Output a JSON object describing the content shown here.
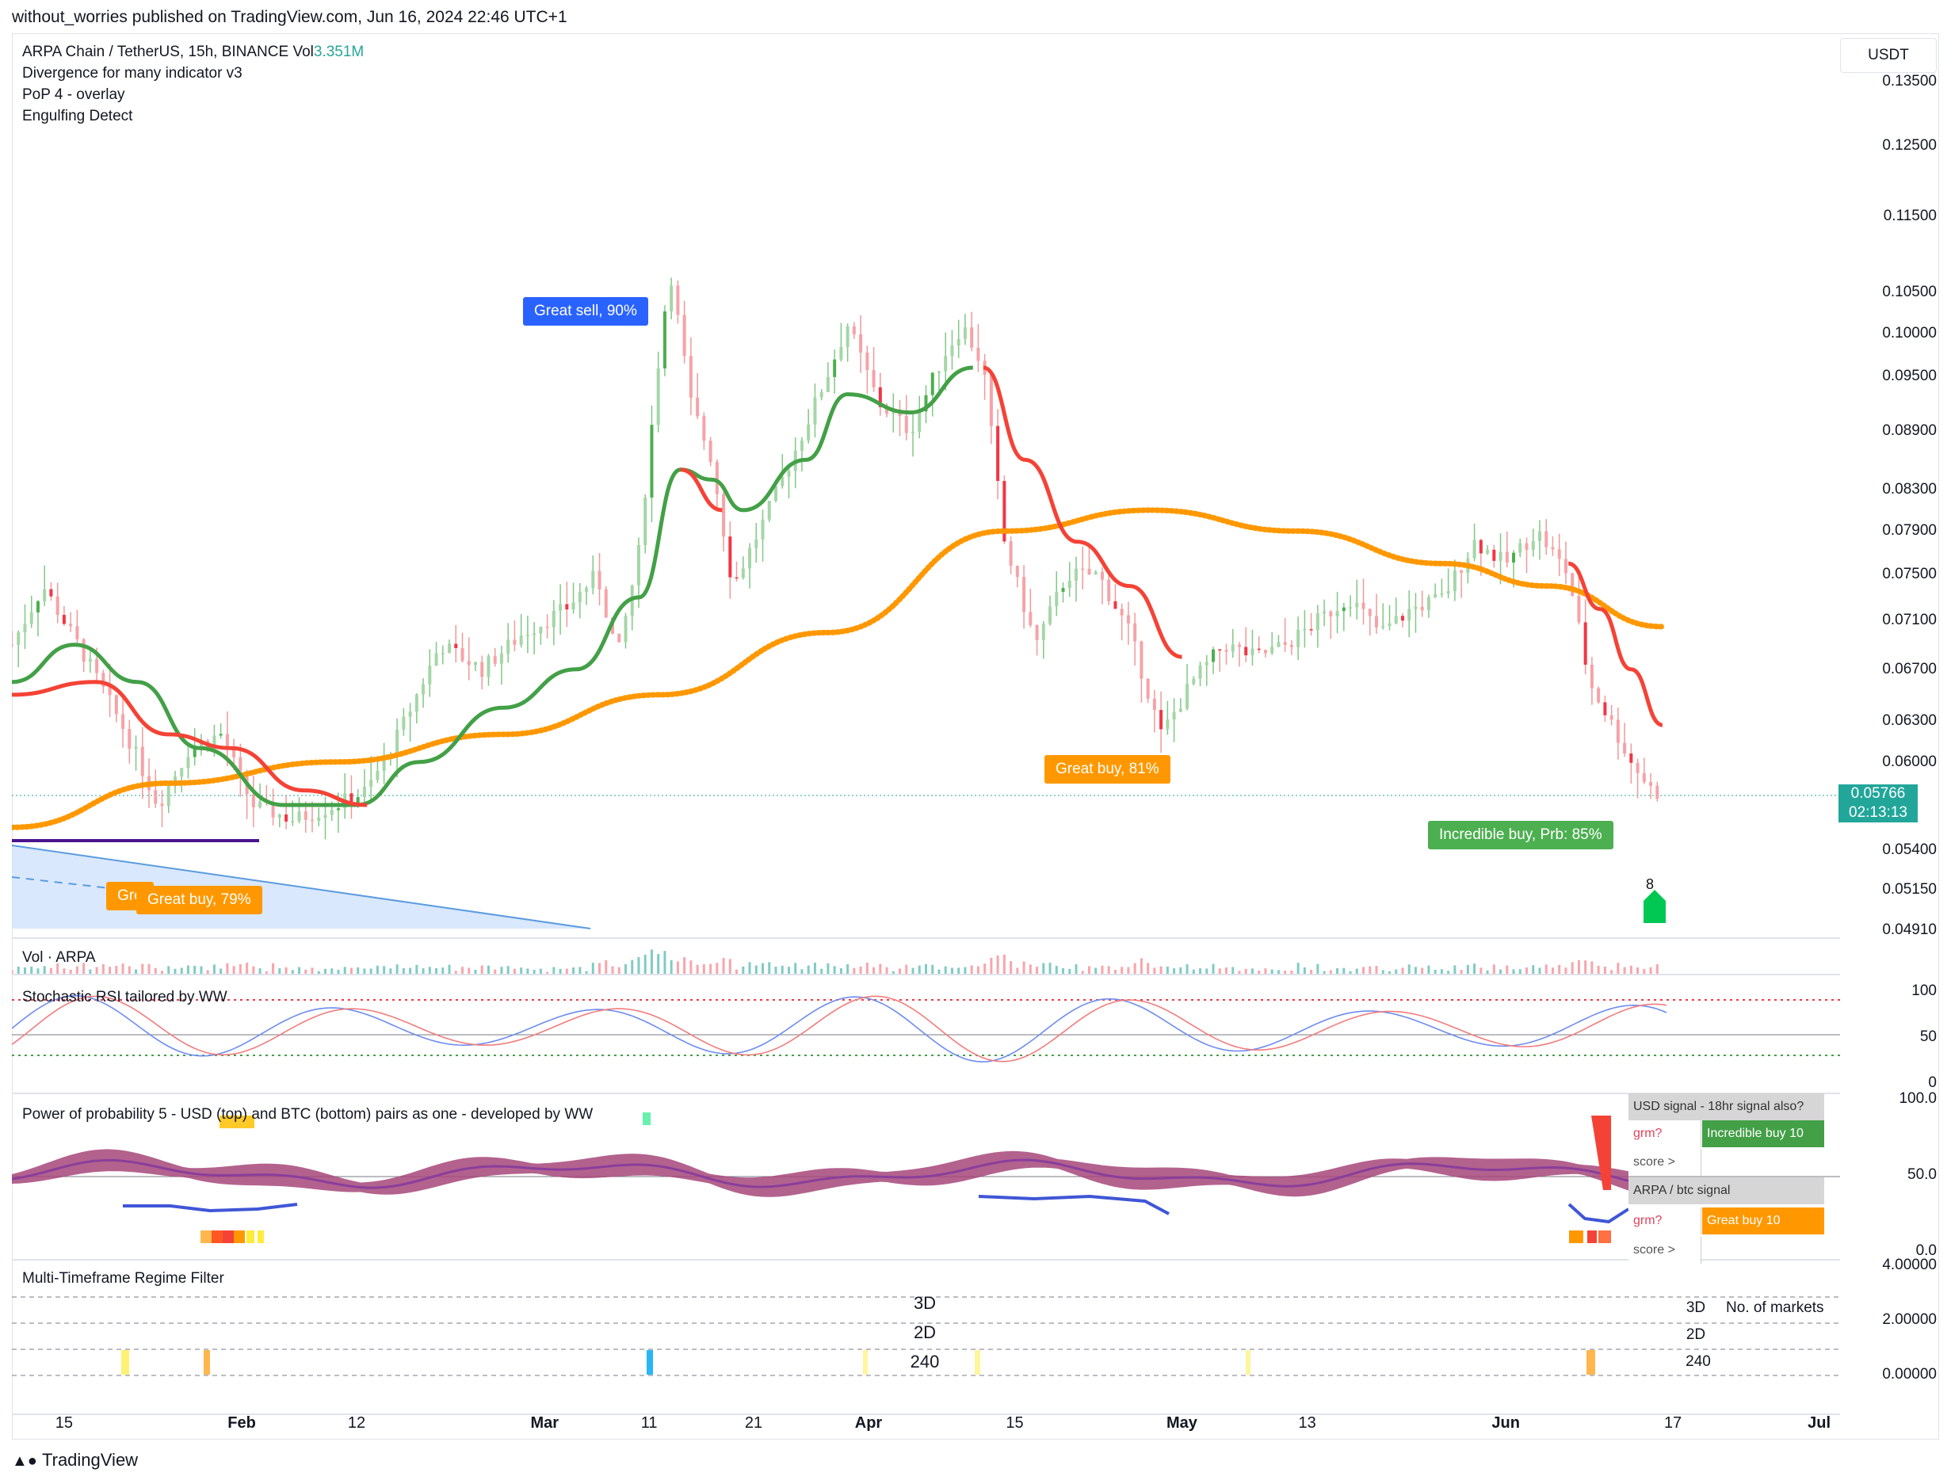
{
  "publish": {
    "text": "without_worries published on TradingView.com, Jun 16, 2024 22:46 UTC+1"
  },
  "legend": {
    "symbol": "ARPA Chain / TetherUS, 15h, BINANCE  Vol",
    "vol": "3.351M",
    "ind1": "Divergence for many indicator v3",
    "ind2": "PoP 4 - overlay",
    "ind3": "Engulfing Detect"
  },
  "price_axis": {
    "unit": "USDT",
    "ticks": [
      "0.13500",
      "0.12500",
      "0.11500",
      "0.10500",
      "0.10000",
      "0.09500",
      "0.08900",
      "0.08300",
      "0.07900",
      "0.07500",
      "0.07100",
      "0.06700",
      "0.06300",
      "0.06000",
      "0.05400",
      "0.05150",
      "0.04910"
    ],
    "current_price": "0.05766",
    "countdown": "02:13:13"
  },
  "time_axis": {
    "ticks": [
      "15",
      "Feb",
      "12",
      "Mar",
      "11",
      "21",
      "Apr",
      "15",
      "May",
      "13",
      "Jun",
      "17",
      "Jul"
    ],
    "bold": [
      "Feb",
      "Mar",
      "Apr",
      "May",
      "Jun",
      "Jul"
    ]
  },
  "signals": {
    "great_sell": "Great sell, 90%",
    "great_buy_81": "Great buy,  81%",
    "great_buy_79": "Great buy,  79%",
    "great_buy_cut": "Gre",
    "incredible_buy": "Incredible buy, Prb: 85%",
    "marker_8": "8"
  },
  "panes": {
    "vol_title": "Vol · ARPA",
    "stoch_title": "Stochastic RSI tailored by WW",
    "stoch_ticks": [
      "100",
      "50",
      "0"
    ],
    "pop_title": "Power of probability 5 - USD (top) and BTC (bottom) pairs as one - developed by WW",
    "pop_ticks": [
      "100.0",
      "50.0",
      "0.0"
    ],
    "regime_title": "Multi-Timeframe Regime Filter",
    "regime_ticks": [
      "4.00000",
      "2.00000",
      "0.00000"
    ],
    "regime_center": [
      "3D",
      "2D",
      "240"
    ],
    "regime_right": [
      "3D",
      "2D",
      "240"
    ],
    "regime_markets": "No. of markets"
  },
  "signal_table": {
    "usd_header": "USD signal - 18hr signal also?",
    "usd_grm": "grm?",
    "usd_value": "Incredible buy 10",
    "usd_score": "score >",
    "btc_header": "ARPA / btc signal",
    "btc_grm": "grm?",
    "btc_value": "Great buy 10",
    "btc_score": "score >"
  },
  "footer": {
    "logo": "TradingView"
  },
  "colors": {
    "up": "#4caf50",
    "down": "#f23645",
    "ema_fast": "#43a047",
    "ema_slow": "#ff9800",
    "red_ma": "#f44336",
    "accent": "#2962ff"
  },
  "chart_data": {
    "type": "candlestick",
    "symbol": "ARPA Chain / TetherUS",
    "timeframe": "15h",
    "exchange": "BINANCE",
    "y_scale": "log",
    "ylim": [
      0.0485,
      0.139
    ],
    "x_range": [
      "Jan 10, 2024",
      "Jul 3, 2024"
    ],
    "close_path": [
      {
        "d": "Jan 10",
        "p": 0.069
      },
      {
        "d": "Jan 13",
        "p": 0.074
      },
      {
        "d": "Jan 17",
        "p": 0.068
      },
      {
        "d": "Jan 21",
        "p": 0.062
      },
      {
        "d": "Jan 24",
        "p": 0.057
      },
      {
        "d": "Jan 27",
        "p": 0.061
      },
      {
        "d": "Jan 30",
        "p": 0.062
      },
      {
        "d": "Feb 2",
        "p": 0.057
      },
      {
        "d": "Feb 6",
        "p": 0.056
      },
      {
        "d": "Feb 10",
        "p": 0.057
      },
      {
        "d": "Feb 13",
        "p": 0.058
      },
      {
        "d": "Feb 16",
        "p": 0.062
      },
      {
        "d": "Feb 20",
        "p": 0.069
      },
      {
        "d": "Feb 24",
        "p": 0.067
      },
      {
        "d": "Feb 28",
        "p": 0.07
      },
      {
        "d": "Mar 3",
        "p": 0.072
      },
      {
        "d": "Mar 6",
        "p": 0.075
      },
      {
        "d": "Mar 8",
        "p": 0.068
      },
      {
        "d": "Mar 10",
        "p": 0.077
      },
      {
        "d": "Mar 12",
        "p": 0.098
      },
      {
        "d": "Mar 13",
        "p": 0.108
      },
      {
        "d": "Mar 15",
        "p": 0.092
      },
      {
        "d": "Mar 17",
        "p": 0.086
      },
      {
        "d": "Mar 19",
        "p": 0.074
      },
      {
        "d": "Mar 22",
        "p": 0.08
      },
      {
        "d": "Mar 25",
        "p": 0.087
      },
      {
        "d": "Mar 28",
        "p": 0.095
      },
      {
        "d": "Mar 30",
        "p": 0.101
      },
      {
        "d": "Apr 2",
        "p": 0.092
      },
      {
        "d": "Apr 5",
        "p": 0.089
      },
      {
        "d": "Apr 8",
        "p": 0.097
      },
      {
        "d": "Apr 10",
        "p": 0.101
      },
      {
        "d": "Apr 12",
        "p": 0.096
      },
      {
        "d": "Apr 14",
        "p": 0.078
      },
      {
        "d": "Apr 17",
        "p": 0.069
      },
      {
        "d": "Apr 20",
        "p": 0.075
      },
      {
        "d": "Apr 23",
        "p": 0.075
      },
      {
        "d": "Apr 26",
        "p": 0.07
      },
      {
        "d": "Apr 29",
        "p": 0.062
      },
      {
        "d": "May 2",
        "p": 0.066
      },
      {
        "d": "May 5",
        "p": 0.069
      },
      {
        "d": "May 8",
        "p": 0.068
      },
      {
        "d": "May 11",
        "p": 0.069
      },
      {
        "d": "May 14",
        "p": 0.071
      },
      {
        "d": "May 17",
        "p": 0.073
      },
      {
        "d": "May 20",
        "p": 0.07
      },
      {
        "d": "May 23",
        "p": 0.072
      },
      {
        "d": "May 26",
        "p": 0.073
      },
      {
        "d": "May 29",
        "p": 0.078
      },
      {
        "d": "Jun 1",
        "p": 0.076
      },
      {
        "d": "Jun 4",
        "p": 0.079
      },
      {
        "d": "Jun 7",
        "p": 0.075
      },
      {
        "d": "Jun 9",
        "p": 0.066
      },
      {
        "d": "Jun 11",
        "p": 0.063
      },
      {
        "d": "Jun 13",
        "p": 0.06
      },
      {
        "d": "Jun 15",
        "p": 0.058
      },
      {
        "d": "Jun 16",
        "p": 0.0577
      }
    ],
    "ema_fast": [
      {
        "d": "Jan 10",
        "p": 0.066
      },
      {
        "d": "Jan 16",
        "p": 0.069
      },
      {
        "d": "Jan 22",
        "p": 0.066
      },
      {
        "d": "Jan 28",
        "p": 0.061
      },
      {
        "d": "Feb 5",
        "p": 0.057
      },
      {
        "d": "Feb 12",
        "p": 0.057
      },
      {
        "d": "Feb 18",
        "p": 0.06
      },
      {
        "d": "Feb 26",
        "p": 0.064
      },
      {
        "d": "Mar 4",
        "p": 0.067
      },
      {
        "d": "Mar 10",
        "p": 0.073
      },
      {
        "d": "Mar 14",
        "p": 0.085
      },
      {
        "d": "Mar 17",
        "p": 0.084
      },
      {
        "d": "Mar 20",
        "p": 0.081
      },
      {
        "d": "Mar 26",
        "p": 0.086
      },
      {
        "d": "Mar 30",
        "p": 0.093
      },
      {
        "d": "Apr 5",
        "p": 0.091
      },
      {
        "d": "Apr 11",
        "p": 0.096
      }
    ],
    "red_ma": [
      {
        "d": "Jan 10",
        "p": 0.065
      },
      {
        "d": "Jan 18",
        "p": 0.066
      },
      {
        "d": "Jan 25",
        "p": 0.062
      },
      {
        "d": "Jan 31",
        "p": 0.061
      },
      {
        "d": "Feb 7",
        "p": 0.058
      },
      {
        "d": "Feb 13",
        "p": 0.057
      },
      {
        "d": "Mar 14",
        "p": 0.085
      },
      {
        "d": "Mar 18",
        "p": 0.081
      },
      {
        "d": "Apr 12",
        "p": 0.096
      },
      {
        "d": "Apr 16",
        "p": 0.086
      },
      {
        "d": "Apr 21",
        "p": 0.078
      },
      {
        "d": "Apr 26",
        "p": 0.074
      },
      {
        "d": "May 1",
        "p": 0.068
      },
      {
        "d": "Jun 7",
        "p": 0.076
      },
      {
        "d": "Jun 10",
        "p": 0.072
      },
      {
        "d": "Jun 13",
        "p": 0.067
      },
      {
        "d": "Jun 16",
        "p": 0.0627
      }
    ],
    "ema_slow": [
      {
        "d": "Jan 10",
        "p": 0.0555
      },
      {
        "d": "Jan 25",
        "p": 0.0585
      },
      {
        "d": "Feb 10",
        "p": 0.06
      },
      {
        "d": "Feb 26",
        "p": 0.062
      },
      {
        "d": "Mar 12",
        "p": 0.065
      },
      {
        "d": "Mar 28",
        "p": 0.07
      },
      {
        "d": "Apr 14",
        "p": 0.079
      },
      {
        "d": "Apr 28",
        "p": 0.081
      },
      {
        "d": "May 12",
        "p": 0.079
      },
      {
        "d": "May 26",
        "p": 0.076
      },
      {
        "d": "Jun 5",
        "p": 0.074
      },
      {
        "d": "Jun 16",
        "p": 0.0705
      }
    ]
  }
}
